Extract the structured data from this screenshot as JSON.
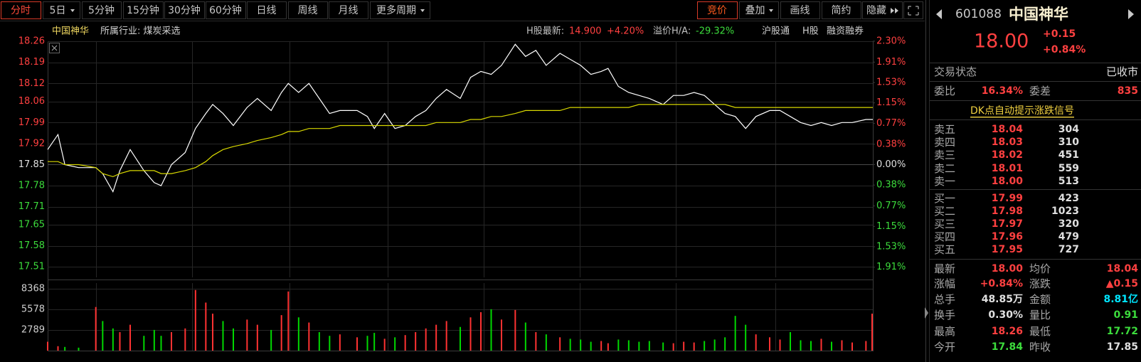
{
  "toolbar": {
    "left": [
      "分时",
      "5日",
      "5分钟",
      "15分钟",
      "30分钟",
      "60分钟",
      "日线",
      "周线",
      "月线",
      "更多周期"
    ],
    "right": [
      "竞价",
      "叠加",
      "画线",
      "简约",
      "隐藏"
    ]
  },
  "info_bar": {
    "stock": "中国神华",
    "industry": "所属行业: 煤炭采选",
    "h_label": "H股最新:",
    "h_price": "14.900",
    "h_change": "+4.20%",
    "premium_label": "溢价H/A:",
    "premium": "-29.32%",
    "links": [
      "沪股通",
      "H股",
      "融资融券"
    ]
  },
  "chart_data": [
    {
      "type": "line",
      "x": [
        0,
        3,
        5,
        9,
        14,
        16,
        19,
        21,
        24,
        28,
        31,
        33,
        36,
        40,
        43,
        46,
        48,
        51,
        54,
        58,
        61,
        65,
        68,
        70,
        73,
        76,
        79,
        82,
        85,
        90,
        93,
        95,
        98,
        101,
        104,
        107,
        110,
        113,
        116,
        120,
        123,
        126,
        129,
        132,
        136,
        139,
        142,
        145,
        149,
        152,
        155,
        158,
        161,
        163,
        166,
        169,
        172,
        175,
        179,
        182,
        185,
        188,
        191,
        194,
        197,
        200,
        203,
        206,
        210,
        213,
        216,
        219,
        222,
        225,
        228,
        231,
        234,
        238,
        240
      ],
      "xlim": [
        0,
        240
      ],
      "ylim": [
        17.475,
        18.265
      ],
      "yticks": [
        18.26,
        18.19,
        18.12,
        18.06,
        17.99,
        17.92,
        17.85,
        17.78,
        17.71,
        17.65,
        17.58,
        17.51
      ],
      "y2lim": [
        -2.1,
        2.325
      ],
      "y2ticks": [
        {
          "value": 2.3,
          "label": "2.30%"
        },
        {
          "value": 1.91,
          "label": "1.91%"
        },
        {
          "value": 1.53,
          "label": "1.53%"
        },
        {
          "value": 1.15,
          "label": "1.15%"
        },
        {
          "value": 0.77,
          "label": "0.77%"
        },
        {
          "value": 0.38,
          "label": "0.38%"
        },
        {
          "value": 0,
          "label": "0.00%"
        },
        {
          "value": -0.38,
          "label": "0.38%"
        },
        {
          "value": -0.77,
          "label": "0.77%"
        },
        {
          "value": -1.15,
          "label": "1.15%"
        },
        {
          "value": -1.53,
          "label": "1.53%"
        },
        {
          "value": -1.91,
          "label": "1.91%"
        }
      ],
      "series": [
        {
          "color": "#ffffff",
          "values": [
            17.9,
            17.95,
            17.85,
            17.84,
            17.84,
            17.82,
            17.76,
            17.83,
            17.9,
            17.83,
            17.79,
            17.78,
            17.85,
            17.89,
            17.97,
            18.02,
            18.05,
            18.02,
            17.98,
            18.04,
            18.07,
            18.03,
            18.09,
            18.12,
            18.09,
            18.12,
            18.07,
            18.02,
            18.03,
            18.03,
            18.01,
            17.97,
            18.02,
            17.97,
            17.98,
            18.01,
            18.03,
            18.07,
            18.1,
            18.07,
            18.14,
            18.16,
            18.15,
            18.18,
            18.25,
            18.21,
            18.23,
            18.18,
            18.22,
            18.2,
            18.18,
            18.15,
            18.16,
            18.17,
            18.11,
            18.09,
            18.08,
            18.07,
            18.05,
            18.08,
            18.08,
            18.09,
            18.08,
            18.05,
            18.02,
            18.01,
            17.97,
            18.01,
            18.03,
            18.03,
            18.01,
            17.99,
            17.98,
            17.99,
            17.98,
            17.99,
            17.99,
            18.0,
            18.0
          ]
        },
        {
          "color": "#d8d800",
          "values": [
            17.86,
            17.86,
            17.85,
            17.85,
            17.84,
            17.82,
            17.81,
            17.82,
            17.83,
            17.83,
            17.83,
            17.82,
            17.82,
            17.83,
            17.84,
            17.86,
            17.88,
            17.9,
            17.91,
            17.92,
            17.93,
            17.94,
            17.95,
            17.96,
            17.96,
            17.97,
            17.97,
            17.97,
            17.98,
            17.98,
            17.98,
            17.98,
            17.98,
            17.98,
            17.98,
            17.98,
            17.98,
            17.99,
            17.99,
            17.99,
            18.0,
            18.0,
            18.01,
            18.01,
            18.02,
            18.03,
            18.03,
            18.03,
            18.03,
            18.04,
            18.04,
            18.04,
            18.04,
            18.04,
            18.04,
            18.04,
            18.05,
            18.05,
            18.05,
            18.05,
            18.05,
            18.05,
            18.05,
            18.05,
            18.05,
            18.04,
            18.04,
            18.04,
            18.04,
            18.04,
            18.04,
            18.04,
            18.04,
            18.04,
            18.04,
            18.04,
            18.04,
            18.04,
            18.04
          ]
        }
      ]
    },
    {
      "type": "bar",
      "x": [
        0,
        3,
        5,
        9,
        14,
        16,
        19,
        21,
        24,
        28,
        31,
        33,
        36,
        40,
        43,
        46,
        48,
        51,
        54,
        58,
        61,
        65,
        68,
        70,
        73,
        76,
        79,
        82,
        85,
        90,
        93,
        95,
        98,
        101,
        104,
        107,
        110,
        113,
        116,
        120,
        123,
        126,
        129,
        132,
        136,
        139,
        142,
        145,
        149,
        152,
        155,
        158,
        161,
        163,
        166,
        169,
        172,
        175,
        179,
        182,
        185,
        188,
        191,
        194,
        197,
        200,
        203,
        206,
        210,
        213,
        216,
        219,
        222,
        225,
        228,
        231,
        234,
        238,
        240
      ],
      "xlim": [
        0,
        240
      ],
      "ylim": [
        0,
        9140
      ],
      "yticks": [
        2789,
        5578,
        8368
      ],
      "values": [
        1200,
        600,
        500,
        400,
        5900,
        4000,
        3000,
        2500,
        3500,
        2000,
        2800,
        2000,
        2500,
        3000,
        8200,
        6500,
        5000,
        4000,
        3000,
        4200,
        3500,
        2800,
        4800,
        8000,
        4500,
        3800,
        2500,
        2000,
        2200,
        1800,
        2000,
        2400,
        1600,
        1800,
        2100,
        2500,
        3000,
        3500,
        4000,
        3200,
        4500,
        5200,
        5600,
        4200,
        5500,
        3800,
        2500,
        2200,
        1800,
        1600,
        1500,
        1200,
        1300,
        1000,
        1500,
        1400,
        1200,
        1300,
        1100,
        1000,
        1200,
        1100,
        1300,
        1500,
        1800,
        4700,
        3500,
        2200,
        1800,
        1500,
        2500,
        1400,
        1300,
        1600,
        1200,
        1400,
        1100,
        1300,
        5000
      ],
      "up_color": "#ff3232",
      "down_color": "#00d800"
    }
  ],
  "quote_panel": {
    "code": "601088",
    "name": "中国神华",
    "price": "18.00",
    "change": "+0.15",
    "change_pct": "+0.84%",
    "status_label": "交易状态",
    "status": "已收市",
    "ratio_label": "委比",
    "ratio": "16.34%",
    "diff_label": "委差",
    "diff": "835",
    "signal": "DK点自动提示涨跌信号",
    "asks": [
      [
        "卖五",
        "18.04",
        "304"
      ],
      [
        "卖四",
        "18.03",
        "310"
      ],
      [
        "卖三",
        "18.02",
        "451"
      ],
      [
        "卖二",
        "18.01",
        "559"
      ],
      [
        "卖一",
        "18.00",
        "513"
      ]
    ],
    "bids": [
      [
        "买一",
        "17.99",
        "423"
      ],
      [
        "买二",
        "17.98",
        "1023"
      ],
      [
        "买三",
        "17.97",
        "320"
      ],
      [
        "买四",
        "17.96",
        "479"
      ],
      [
        "买五",
        "17.95",
        "727"
      ]
    ],
    "stats": [
      [
        "最新",
        "18.00",
        "均价",
        "18.04"
      ],
      [
        "涨幅",
        "+0.84%",
        "涨跌",
        "▲0.15"
      ],
      [
        "总手",
        "48.85万",
        "金额",
        "8.81亿"
      ],
      [
        "换手",
        "0.30%",
        "量比",
        "0.91"
      ],
      [
        "最高",
        "18.26",
        "最低",
        "17.72"
      ],
      [
        "今开",
        "17.84",
        "昨收",
        "17.85"
      ]
    ]
  }
}
